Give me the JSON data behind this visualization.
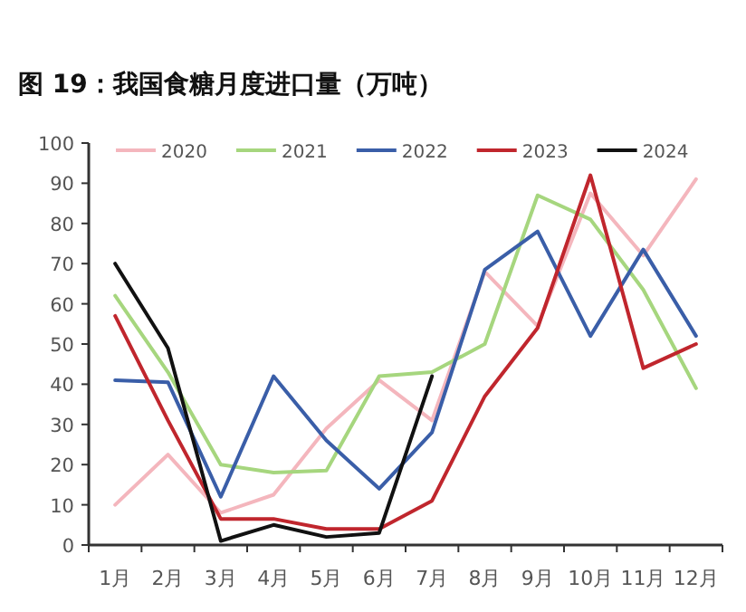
{
  "chart_data": {
    "type": "line",
    "title": "图 19：我国食糖月度进口量（万吨）",
    "categories": [
      "1月",
      "2月",
      "3月",
      "4月",
      "5月",
      "6月",
      "7月",
      "8月",
      "9月",
      "10月",
      "11月",
      "12月"
    ],
    "series": [
      {
        "name": "2020",
        "color": "#f4b6bd",
        "values": [
          10,
          22.5,
          8,
          12.5,
          29,
          41,
          31,
          68,
          54.5,
          87.5,
          72,
          91
        ]
      },
      {
        "name": "2021",
        "color": "#a6d67e",
        "values": [
          62,
          43,
          20,
          18,
          18.5,
          42,
          43,
          50,
          87,
          81,
          63.5,
          39
        ]
      },
      {
        "name": "2022",
        "color": "#3a5ea8",
        "values": [
          41,
          40.5,
          12,
          42,
          26,
          14,
          28,
          68.5,
          78,
          52,
          73.5,
          52
        ]
      },
      {
        "name": "2023",
        "color": "#c0262d",
        "values": [
          57,
          31,
          6.5,
          6.5,
          4,
          4,
          11,
          37,
          54,
          92,
          44,
          50
        ]
      },
      {
        "name": "2024",
        "color": "#111111",
        "values": [
          70,
          49,
          1,
          5,
          2,
          3,
          42,
          null,
          null,
          null,
          null,
          null
        ]
      }
    ],
    "ylim": [
      0,
      100
    ],
    "yticks": [
      0,
      10,
      20,
      30,
      40,
      50,
      60,
      70,
      80,
      90,
      100
    ],
    "legend": "top",
    "grid": false,
    "marker": "none",
    "line_style": "solid"
  }
}
